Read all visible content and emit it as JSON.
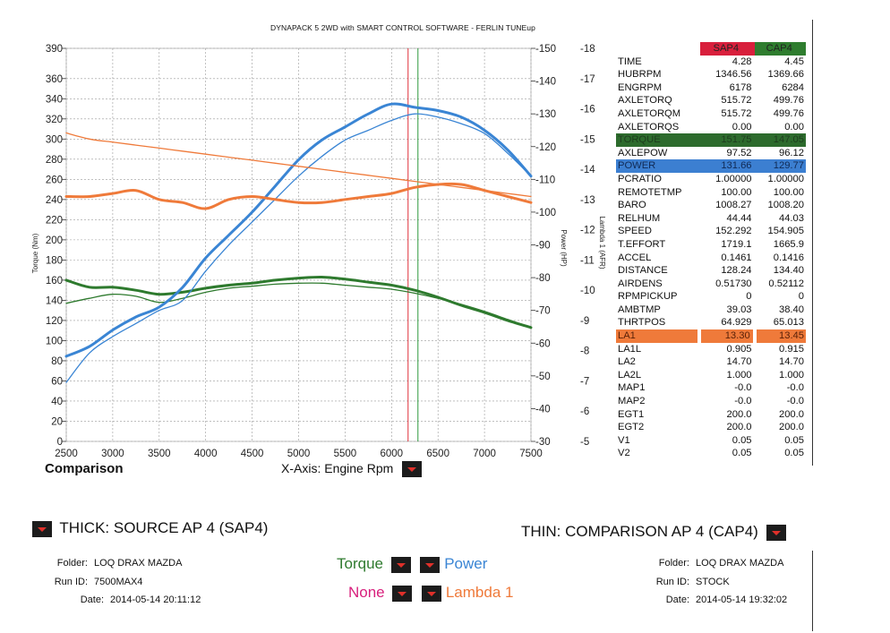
{
  "page": {
    "title": "DYNAPACK 5 2WD with SMART CONTROL SOFTWARE - FERLIN TUNEup",
    "comparison_label": "Comparison",
    "xaxis_label": "X-Axis: Engine Rpm",
    "source_label": "THICK: SOURCE AP 4 (SAP4)",
    "comparison_ap_label": "THIN: COMPARISON AP 4 (CAP4)"
  },
  "source_info": {
    "folder_key": "Folder:",
    "folder": "LOQ DRAX MAZDA",
    "run_key": "Run ID:",
    "run": "7500MAX4",
    "date_key": "Date:",
    "date": "2014-05-14 20:11:12"
  },
  "comp_info": {
    "folder_key": "Folder:",
    "folder": "LOQ DRAX MAZDA",
    "run_key": "Run ID:",
    "run": "STOCK",
    "date_key": "Date:",
    "date": "2014-05-14 19:32:02"
  },
  "legend": {
    "torque": "Torque",
    "power": "Power",
    "none": "None",
    "lambda": "Lambda 1"
  },
  "colors": {
    "torque": "#2e7a2e",
    "power": "#3a85d4",
    "lambda": "#ef7a3a",
    "none": "#d81f7c",
    "sap_marker": "#e0303a",
    "cap_marker": "#2e9a3e"
  },
  "table": {
    "header": {
      "v1": "SAP4",
      "v2": "CAP4"
    },
    "rows": [
      {
        "label": "TIME",
        "v1": "4.28",
        "v2": "4.45",
        "hl": ""
      },
      {
        "label": "HUBRPM",
        "v1": "1346.56",
        "v2": "1369.66",
        "hl": ""
      },
      {
        "label": "ENGRPM",
        "v1": "6178",
        "v2": "6284",
        "hl": ""
      },
      {
        "label": "AXLETORQ",
        "v1": "515.72",
        "v2": "499.76",
        "hl": ""
      },
      {
        "label": "AXLETORQM",
        "v1": "515.72",
        "v2": "499.76",
        "hl": ""
      },
      {
        "label": "AXLETORQS",
        "v1": "0.00",
        "v2": "0.00",
        "hl": ""
      },
      {
        "label": "TORQUE",
        "v1": "151.75",
        "v2": "147.05",
        "hl": "green"
      },
      {
        "label": "AXLEPOW",
        "v1": "97.52",
        "v2": "96.12",
        "hl": ""
      },
      {
        "label": "POWER",
        "v1": "131.66",
        "v2": "129.77",
        "hl": "blue"
      },
      {
        "label": "PCRATIO",
        "v1": "1.00000",
        "v2": "1.00000",
        "hl": ""
      },
      {
        "label": "REMOTETMP",
        "v1": "100.00",
        "v2": "100.00",
        "hl": ""
      },
      {
        "label": "BARO",
        "v1": "1008.27",
        "v2": "1008.20",
        "hl": ""
      },
      {
        "label": "RELHUM",
        "v1": "44.44",
        "v2": "44.03",
        "hl": ""
      },
      {
        "label": "SPEED",
        "v1": "152.292",
        "v2": "154.905",
        "hl": ""
      },
      {
        "label": "T.EFFORT",
        "v1": "1719.1",
        "v2": "1665.9",
        "hl": ""
      },
      {
        "label": "ACCEL",
        "v1": "0.1461",
        "v2": "0.1416",
        "hl": ""
      },
      {
        "label": "DISTANCE",
        "v1": "128.24",
        "v2": "134.40",
        "hl": ""
      },
      {
        "label": "AIRDENS",
        "v1": "0.51730",
        "v2": "0.52112",
        "hl": ""
      },
      {
        "label": "RPMPICKUP",
        "v1": "0",
        "v2": "0",
        "hl": ""
      },
      {
        "label": "AMBTMP",
        "v1": "39.03",
        "v2": "38.40",
        "hl": ""
      },
      {
        "label": "THRTPOS",
        "v1": "64.929",
        "v2": "65.013",
        "hl": ""
      },
      {
        "label": "LA1",
        "v1": "13.30",
        "v2": "13.45",
        "hl": "orange"
      },
      {
        "label": "LA1L",
        "v1": "0.905",
        "v2": "0.915",
        "hl": ""
      },
      {
        "label": "LA2",
        "v1": "14.70",
        "v2": "14.70",
        "hl": ""
      },
      {
        "label": "LA2L",
        "v1": "1.000",
        "v2": "1.000",
        "hl": ""
      },
      {
        "label": "MAP1",
        "v1": "-0.0",
        "v2": "-0.0",
        "hl": ""
      },
      {
        "label": "MAP2",
        "v1": "-0.0",
        "v2": "-0.0",
        "hl": ""
      },
      {
        "label": "EGT1",
        "v1": "200.0",
        "v2": "200.0",
        "hl": ""
      },
      {
        "label": "EGT2",
        "v1": "200.0",
        "v2": "200.0",
        "hl": ""
      },
      {
        "label": "V1",
        "v1": "0.05",
        "v2": "0.05",
        "hl": ""
      },
      {
        "label": "V2",
        "v1": "0.05",
        "v2": "0.05",
        "hl": ""
      }
    ]
  },
  "chart_data": {
    "type": "line",
    "xlabel": "X-Axis: Engine Rpm",
    "ylabel": "Torque (Nm)",
    "y2label": "Power (HP)",
    "y3label": "Lambda 1 (AFR)",
    "xlim": [
      2500,
      7500
    ],
    "ylim": [
      0,
      390
    ],
    "y2lim": [
      30,
      150
    ],
    "y3lim": [
      5,
      18
    ],
    "x_ticks": [
      2500,
      3000,
      3500,
      4000,
      4500,
      5000,
      5500,
      6000,
      6500,
      7000,
      7500
    ],
    "y_ticks": [
      0,
      20,
      40,
      60,
      80,
      100,
      120,
      140,
      160,
      180,
      200,
      220,
      240,
      260,
      280,
      300,
      320,
      340,
      360,
      390
    ],
    "y2_ticks": [
      30,
      40,
      50,
      60,
      70,
      80,
      90,
      100,
      110,
      120,
      130,
      140,
      150
    ],
    "y3_ticks": [
      5,
      6,
      7,
      8,
      9,
      10,
      11,
      12,
      13,
      14,
      15,
      16,
      17,
      18
    ],
    "cursor_sap4_rpm": 6178,
    "cursor_cap4_rpm": 6284,
    "grid": true,
    "series": [
      {
        "name": "SAP4",
        "axis": "torque",
        "weight": "thick",
        "x": [
          2500,
          2750,
          3000,
          3250,
          3500,
          3750,
          4000,
          4250,
          4500,
          4750,
          5000,
          5250,
          5500,
          5750,
          6000,
          6250,
          6500,
          6750,
          7000,
          7250,
          7500
        ],
        "y": [
          160,
          153,
          153,
          150,
          146,
          148,
          152,
          155,
          157,
          160,
          162,
          163,
          161,
          158,
          155,
          150,
          143,
          135,
          128,
          120,
          113
        ]
      },
      {
        "name": "CAP4",
        "axis": "torque",
        "weight": "thin",
        "x": [
          2500,
          2750,
          3000,
          3250,
          3500,
          3750,
          4000,
          4250,
          4500,
          4750,
          5000,
          5250,
          5500,
          5750,
          6000,
          6250,
          6500,
          6750,
          7000,
          7250,
          7500
        ],
        "y": [
          137,
          142,
          146,
          144,
          138,
          142,
          148,
          152,
          154,
          156,
          157,
          157,
          155,
          153,
          151,
          147,
          142,
          136,
          129,
          121,
          113
        ]
      },
      {
        "name": "SAP4",
        "axis": "power",
        "weight": "thick",
        "x": [
          2500,
          2750,
          3000,
          3250,
          3500,
          3750,
          4000,
          4250,
          4500,
          4750,
          5000,
          5250,
          5500,
          5750,
          6000,
          6250,
          6500,
          6750,
          7000,
          7250,
          7500
        ],
        "y": [
          56,
          59,
          64,
          68,
          71,
          77,
          86,
          93,
          100,
          108,
          116,
          122,
          126,
          130,
          133,
          132,
          131,
          129,
          125,
          119,
          111
        ]
      },
      {
        "name": "CAP4",
        "axis": "power",
        "weight": "thin",
        "x": [
          2500,
          2750,
          3000,
          3250,
          3500,
          3750,
          4000,
          4250,
          4500,
          4750,
          5000,
          5250,
          5500,
          5750,
          6000,
          6250,
          6500,
          6750,
          7000,
          7250,
          7500
        ],
        "y": [
          48,
          57,
          62,
          66,
          70,
          73,
          82,
          90,
          97,
          104,
          111,
          117,
          122,
          125,
          128,
          130,
          129,
          127,
          124,
          118,
          111
        ]
      },
      {
        "name": "SAP4",
        "axis": "lambda",
        "weight": "thick",
        "x": [
          2500,
          2750,
          3000,
          3250,
          3500,
          3750,
          4000,
          4250,
          4500,
          4750,
          5000,
          5250,
          5500,
          5750,
          6000,
          6250,
          6500,
          6750,
          7000,
          7250,
          7500
        ],
        "y": [
          13.1,
          13.1,
          13.2,
          13.3,
          13.0,
          12.9,
          12.7,
          13.0,
          13.1,
          13.0,
          12.9,
          12.9,
          13.0,
          13.1,
          13.2,
          13.4,
          13.5,
          13.5,
          13.3,
          13.1,
          12.9
        ]
      },
      {
        "name": "CAP4",
        "axis": "lambda",
        "weight": "thin",
        "x": [
          2500,
          2750,
          3000,
          3250,
          3500,
          3750,
          4000,
          4250,
          4500,
          4750,
          5000,
          5250,
          5500,
          5750,
          6000,
          6250,
          6500,
          6750,
          7000,
          7250,
          7500
        ],
        "y": [
          15.2,
          15.0,
          14.9,
          14.8,
          14.7,
          14.6,
          14.5,
          14.4,
          14.3,
          14.2,
          14.1,
          14.0,
          13.9,
          13.8,
          13.7,
          13.6,
          13.5,
          13.4,
          13.3,
          13.2,
          13.1
        ]
      }
    ]
  }
}
